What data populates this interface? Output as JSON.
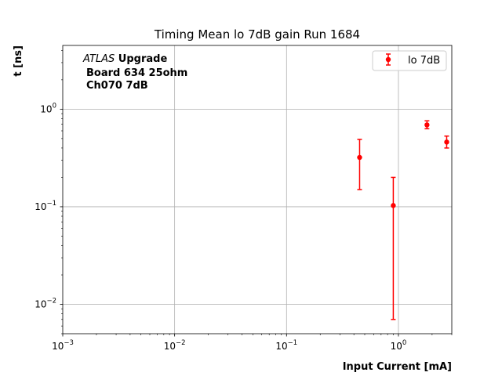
{
  "chart_data": {
    "type": "scatter",
    "title": "Timing Mean lo 7dB gain Run 1684",
    "xlabel": "Input Current [mA]",
    "ylabel": "t [ns]",
    "xscale": "log",
    "yscale": "log",
    "xlim": [
      0.001,
      3.0
    ],
    "ylim": [
      0.005,
      4.5
    ],
    "grid": true,
    "legend": {
      "location": "upper right",
      "entries": [
        "lo 7dB"
      ]
    },
    "annotation": {
      "line1_italic": "ATLAS",
      "line1_bold": " Upgrade",
      "line2": "Board 634 25ohm",
      "line3": "Ch070 7dB"
    },
    "xticks": [
      {
        "value": 0.001,
        "base": "10",
        "exp": "−3"
      },
      {
        "value": 0.01,
        "base": "10",
        "exp": "−2"
      },
      {
        "value": 0.1,
        "base": "10",
        "exp": "−1"
      },
      {
        "value": 1,
        "base": "10",
        "exp": "0"
      }
    ],
    "yticks": [
      {
        "value": 0.01,
        "base": "10",
        "exp": "−2"
      },
      {
        "value": 0.1,
        "base": "10",
        "exp": "−1"
      },
      {
        "value": 1,
        "base": "10",
        "exp": "0"
      }
    ],
    "series": [
      {
        "name": "lo 7dB",
        "color": "#ff0000",
        "points": [
          {
            "x": 0.45,
            "y": 0.32,
            "ylow": 0.15,
            "yhigh": 0.49
          },
          {
            "x": 0.9,
            "y": 0.103,
            "ylow": 0.007,
            "yhigh": 0.2
          },
          {
            "x": 1.8,
            "y": 0.69,
            "ylow": 0.63,
            "yhigh": 0.76
          },
          {
            "x": 2.7,
            "y": 0.46,
            "ylow": 0.4,
            "yhigh": 0.53
          }
        ]
      }
    ]
  }
}
